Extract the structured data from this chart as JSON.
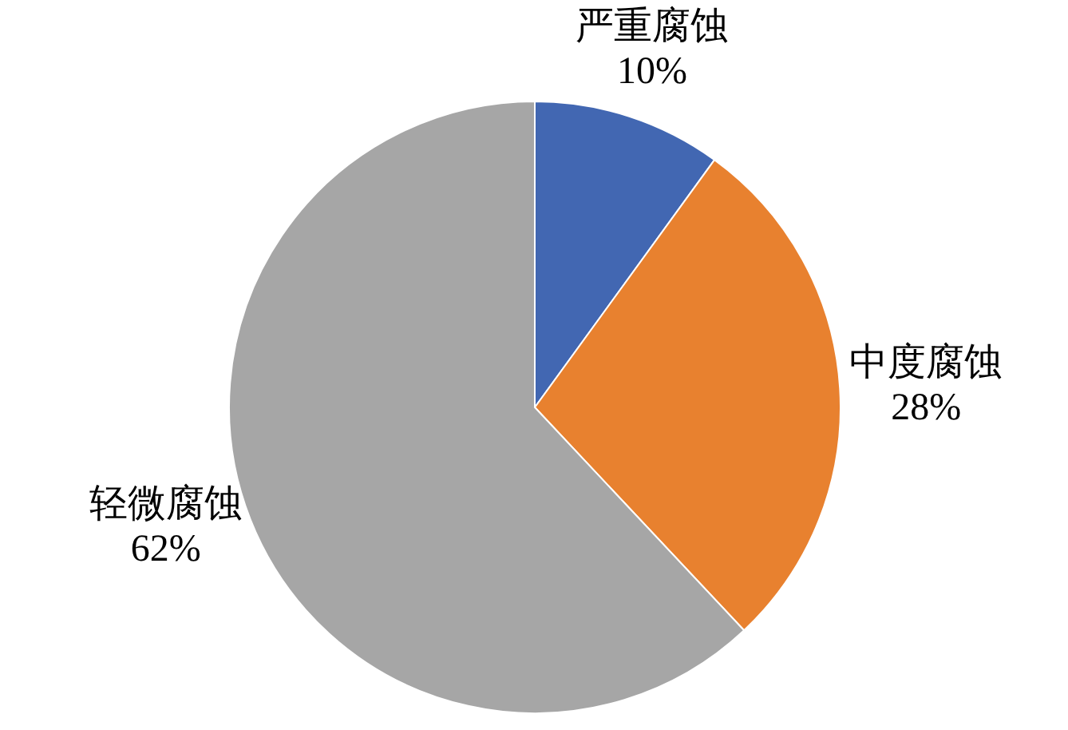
{
  "chart_data": {
    "type": "pie",
    "categories": [
      "严重腐蚀",
      "中度腐蚀",
      "轻微腐蚀"
    ],
    "values": [
      10,
      28,
      62
    ],
    "colors": [
      "#4267b2",
      "#e8812f",
      "#a6a6a6"
    ],
    "value_labels": [
      "10%",
      "28%",
      "62%"
    ]
  }
}
